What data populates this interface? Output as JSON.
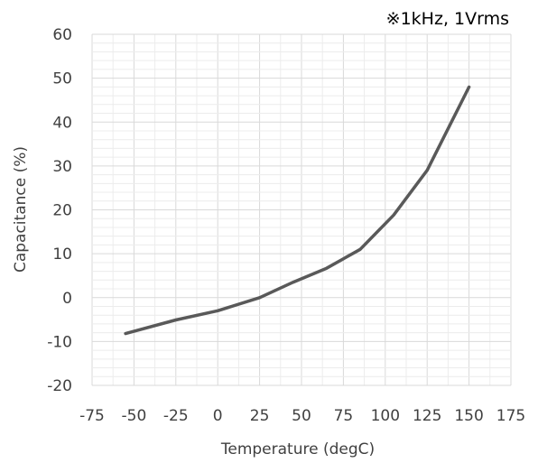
{
  "chart_data": {
    "type": "line",
    "annotation": "※1kHz, 1Vrms",
    "xlabel": "Temperature (degC)",
    "ylabel": "Capacitance (%)",
    "xlim": [
      -75,
      175
    ],
    "ylim": [
      -20,
      60
    ],
    "xticks": [
      -75,
      -50,
      -25,
      0,
      25,
      50,
      75,
      100,
      125,
      150,
      175
    ],
    "yticks": [
      -20,
      -10,
      0,
      10,
      20,
      30,
      40,
      50,
      60
    ],
    "x_minor_step": 12.5,
    "y_minor_step": 2,
    "grid": true,
    "series": [
      {
        "color": "#595959",
        "points": [
          [
            -55,
            -8.2
          ],
          [
            -25,
            -5.1
          ],
          [
            0,
            -3
          ],
          [
            25,
            0
          ],
          [
            45,
            3.5
          ],
          [
            65,
            6.7
          ],
          [
            85,
            11
          ],
          [
            105,
            18.8
          ],
          [
            125,
            29
          ],
          [
            150,
            48
          ]
        ]
      }
    ]
  }
}
